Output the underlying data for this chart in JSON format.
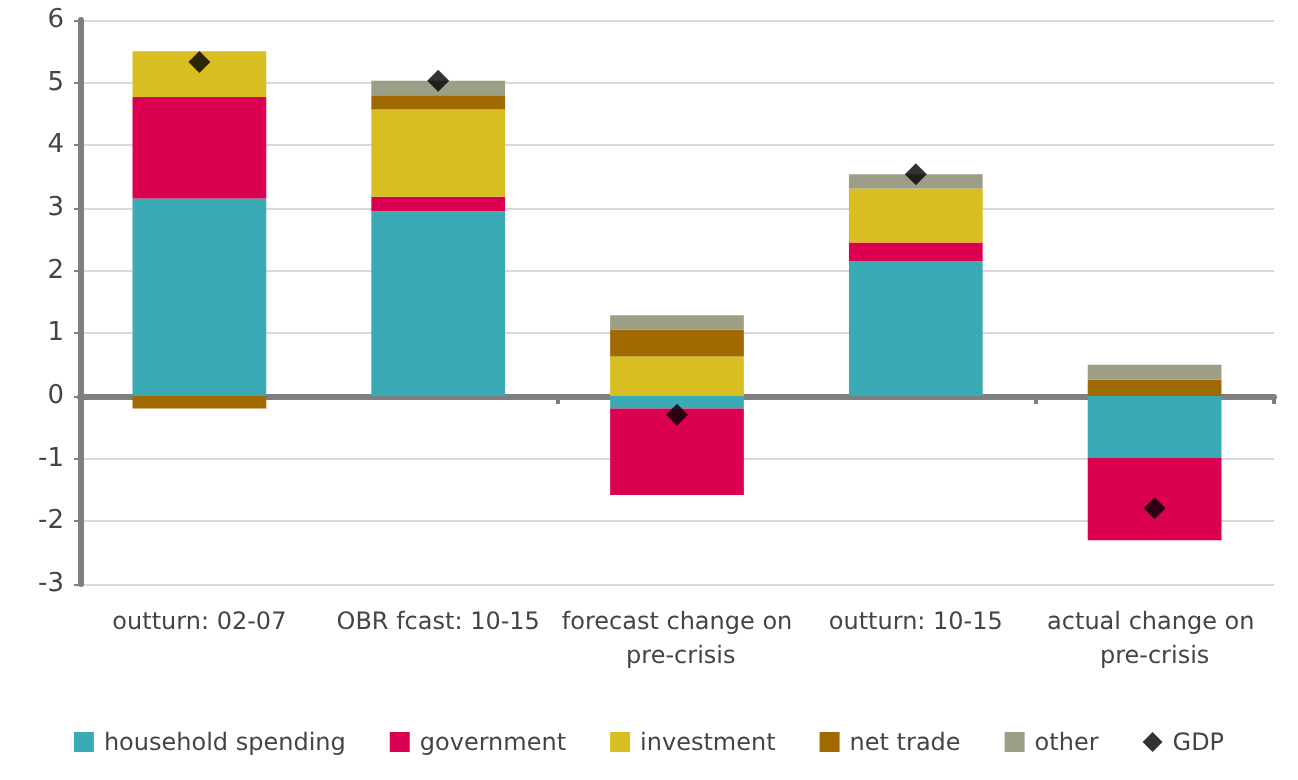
{
  "chart_data": {
    "type": "bar",
    "stacked": true,
    "categories": [
      "outturn: 02-07",
      "OBR fcast: 10-15",
      "forecast change on pre-crisis",
      "outturn: 10-15",
      "actual change on pre-crisis"
    ],
    "series": [
      {
        "name": "household spending",
        "color": "#3aabb5",
        "values": [
          3.15,
          2.95,
          -0.2,
          2.15,
          -0.99
        ]
      },
      {
        "name": "government",
        "color": "#dc0050",
        "values": [
          1.62,
          0.23,
          -1.38,
          0.3,
          -1.31
        ]
      },
      {
        "name": "investment",
        "color": "#d9be22",
        "values": [
          0.73,
          1.39,
          0.63,
          0.86,
          0
        ]
      },
      {
        "name": "net trade",
        "color": "#a06a00",
        "values": [
          -0.2,
          0.23,
          0.43,
          0,
          0.26
        ]
      },
      {
        "name": "other",
        "color": "#9c9e86",
        "values": [
          0,
          0.23,
          0.23,
          0.23,
          0.24
        ]
      },
      {
        "name": "GDP",
        "type": "scatter",
        "color": "#000000",
        "marker": "diamond",
        "x": [
          "outturn: 02-07",
          "OBR fcast: 10-15",
          "forecast change on pre-crisis",
          "outturn: 10-15",
          "actual change on pre-crisis"
        ],
        "values": [
          5.33,
          5.03,
          -0.3,
          3.54,
          -1.79
        ]
      }
    ],
    "ylim": [
      -3,
      6
    ],
    "yticks": [
      -3,
      -2,
      -1,
      0,
      1,
      2,
      3,
      4,
      5,
      6
    ],
    "grid": "y",
    "legend": "bottom"
  }
}
